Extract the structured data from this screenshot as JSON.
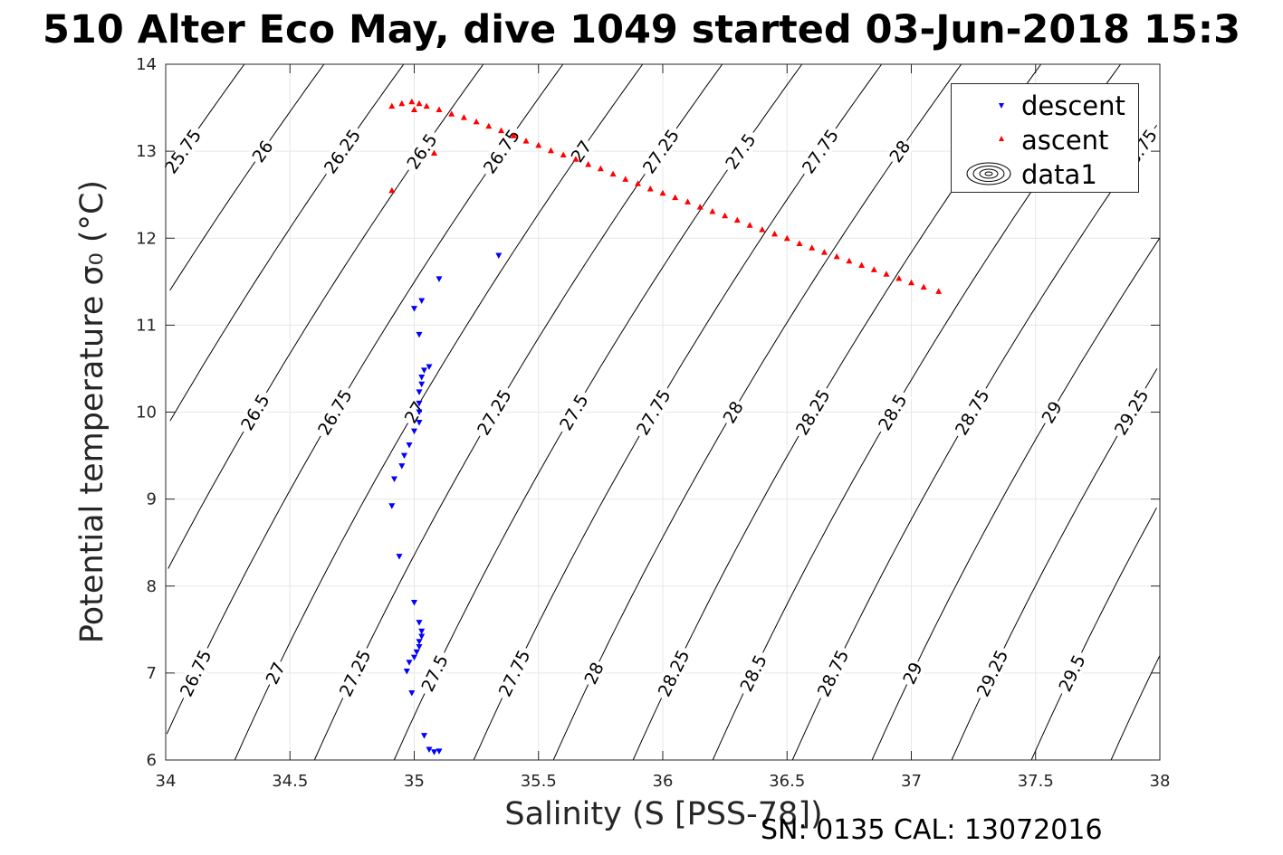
{
  "title": "510 Alter Eco May, dive 1049 started 03-Jun-2018 15:3",
  "footer": "SN: 0135  CAL: 13072016",
  "legend": {
    "descent": "descent",
    "ascent": "ascent",
    "contours": "data1"
  },
  "colors": {
    "descent": "#0000ff",
    "ascent": "#ff0000",
    "contour": "#000000",
    "grid": "#e6e6e6",
    "axis": "#262626"
  },
  "chart_data": {
    "type": "scatter",
    "xlabel": "Salinity (S [PSS-78])",
    "ylabel": "Potential temperature σ₀ (°C)",
    "xlim": [
      34,
      38
    ],
    "ylim": [
      6,
      14
    ],
    "xticks": [
      "34",
      "34.5",
      "35",
      "35.5",
      "36",
      "36.5",
      "37",
      "37.5",
      "38"
    ],
    "yticks": [
      "6",
      "7",
      "8",
      "9",
      "10",
      "11",
      "12",
      "13",
      "14"
    ],
    "grid": true,
    "legend_location": "top-right",
    "series": [
      {
        "name": "descent",
        "marker": "triangle-down",
        "points": [
          [
            35.34,
            11.8
          ],
          [
            35.1,
            11.53
          ],
          [
            35.03,
            11.28
          ],
          [
            35.0,
            11.19
          ],
          [
            35.02,
            10.89
          ],
          [
            35.06,
            10.52
          ],
          [
            35.04,
            10.48
          ],
          [
            35.03,
            10.4
          ],
          [
            35.03,
            10.32
          ],
          [
            35.02,
            10.23
          ],
          [
            35.02,
            10.1
          ],
          [
            35.02,
            10.0
          ],
          [
            35.02,
            9.88
          ],
          [
            35.0,
            9.78
          ],
          [
            34.98,
            9.62
          ],
          [
            34.96,
            9.5
          ],
          [
            34.95,
            9.38
          ],
          [
            34.92,
            9.23
          ],
          [
            34.91,
            8.92
          ],
          [
            34.94,
            8.34
          ],
          [
            35.0,
            7.81
          ],
          [
            35.02,
            7.58
          ],
          [
            35.03,
            7.48
          ],
          [
            35.03,
            7.42
          ],
          [
            35.02,
            7.36
          ],
          [
            35.02,
            7.3
          ],
          [
            35.01,
            7.24
          ],
          [
            35.0,
            7.18
          ],
          [
            34.98,
            7.12
          ],
          [
            34.97,
            7.02
          ],
          [
            34.99,
            6.77
          ],
          [
            35.04,
            6.28
          ],
          [
            35.06,
            6.12
          ],
          [
            35.08,
            6.09
          ],
          [
            35.1,
            6.1
          ]
        ]
      },
      {
        "name": "ascent",
        "marker": "triangle-up",
        "points": [
          [
            34.91,
            12.55
          ],
          [
            35.08,
            12.98
          ],
          [
            35.0,
            13.48
          ],
          [
            34.91,
            13.52
          ],
          [
            34.95,
            13.55
          ],
          [
            34.99,
            13.57
          ],
          [
            35.02,
            13.55
          ],
          [
            35.05,
            13.52
          ],
          [
            35.1,
            13.48
          ],
          [
            35.15,
            13.43
          ],
          [
            35.2,
            13.39
          ],
          [
            35.25,
            13.34
          ],
          [
            35.3,
            13.29
          ],
          [
            35.35,
            13.24
          ],
          [
            35.4,
            13.18
          ],
          [
            35.45,
            13.12
          ],
          [
            35.5,
            13.07
          ],
          [
            35.55,
            13.01
          ],
          [
            35.6,
            12.96
          ],
          [
            35.65,
            12.91
          ],
          [
            35.7,
            12.85
          ],
          [
            35.75,
            12.8
          ],
          [
            35.8,
            12.74
          ],
          [
            35.85,
            12.68
          ],
          [
            35.9,
            12.63
          ],
          [
            35.95,
            12.57
          ],
          [
            36.0,
            12.52
          ],
          [
            36.05,
            12.47
          ],
          [
            36.1,
            12.42
          ],
          [
            36.15,
            12.36
          ],
          [
            36.2,
            12.31
          ],
          [
            36.25,
            12.26
          ],
          [
            36.3,
            12.21
          ],
          [
            36.35,
            12.15
          ],
          [
            36.4,
            12.1
          ],
          [
            36.45,
            12.05
          ],
          [
            36.5,
            12.0
          ],
          [
            36.55,
            11.94
          ],
          [
            36.6,
            11.89
          ],
          [
            36.65,
            11.84
          ],
          [
            36.7,
            11.79
          ],
          [
            36.75,
            11.74
          ],
          [
            36.8,
            11.69
          ],
          [
            36.85,
            11.64
          ],
          [
            36.9,
            11.59
          ],
          [
            36.95,
            11.54
          ],
          [
            37.0,
            11.49
          ],
          [
            37.05,
            11.44
          ],
          [
            37.11,
            11.39
          ]
        ]
      }
    ],
    "density_contours": {
      "name": "data1",
      "levels": [
        "25.75",
        "26",
        "26.25",
        "26.5",
        "26.75",
        "27",
        "27.25",
        "27.5",
        "27.75",
        "28",
        "28.25",
        "28.5",
        "28.75",
        "29",
        "29.25",
        "29.5"
      ]
    }
  }
}
